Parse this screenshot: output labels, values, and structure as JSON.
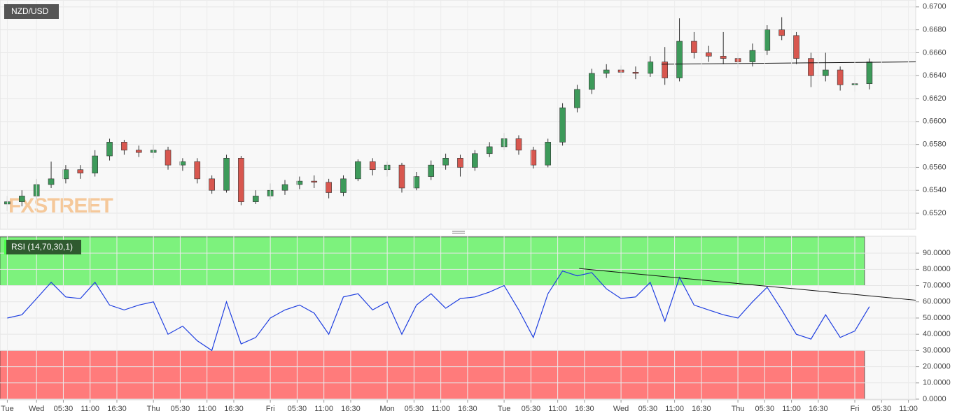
{
  "chart_data": [
    {
      "type": "candlestick",
      "title": "NZD/USD",
      "watermark": "FXSTREET",
      "x": [
        18,
        21,
        24,
        27,
        30,
        33,
        36,
        39,
        42,
        45,
        48,
        51,
        54,
        57,
        60,
        63,
        66,
        69,
        72,
        75,
        78,
        81,
        84,
        87,
        90,
        93,
        96,
        99,
        102,
        105,
        108,
        111,
        114,
        117,
        120,
        123,
        126,
        129,
        132,
        135,
        138,
        141,
        144,
        147,
        150,
        153,
        156,
        159,
        162,
        165,
        168,
        171,
        174,
        177,
        180,
        183,
        186,
        189,
        192,
        195
      ],
      "open": [
        0.6528,
        0.653,
        0.6535,
        0.6545,
        0.655,
        0.6558,
        0.6555,
        0.657,
        0.6582,
        0.6575,
        0.6573,
        0.6575,
        0.6562,
        0.6565,
        0.655,
        0.654,
        0.6568,
        0.653,
        0.6535,
        0.654,
        0.6545,
        0.6548,
        0.6547,
        0.6538,
        0.655,
        0.6565,
        0.6558,
        0.6562,
        0.6542,
        0.6552,
        0.6562,
        0.6568,
        0.656,
        0.6572,
        0.6578,
        0.6585,
        0.6575,
        0.6562,
        0.6582,
        0.6612,
        0.6628,
        0.6642,
        0.6645,
        0.6643,
        0.6642,
        0.6652,
        0.6638,
        0.667,
        0.666,
        0.6657,
        0.6655,
        0.6652,
        0.6662,
        0.668,
        0.6675,
        0.6655,
        0.664,
        0.6645,
        0.6632,
        0.6633
      ],
      "high": [
        0.6535,
        0.654,
        0.655,
        0.6565,
        0.6562,
        0.6562,
        0.6575,
        0.6585,
        0.6584,
        0.6579,
        0.658,
        0.6578,
        0.6568,
        0.6568,
        0.6553,
        0.6571,
        0.657,
        0.654,
        0.6546,
        0.6549,
        0.6552,
        0.6553,
        0.655,
        0.6553,
        0.6567,
        0.6568,
        0.6565,
        0.6564,
        0.6556,
        0.6566,
        0.6572,
        0.6571,
        0.6575,
        0.6582,
        0.659,
        0.6588,
        0.6578,
        0.6585,
        0.6616,
        0.6632,
        0.6646,
        0.665,
        0.6649,
        0.6648,
        0.6657,
        0.6665,
        0.669,
        0.6678,
        0.6666,
        0.6678,
        0.666,
        0.6668,
        0.6684,
        0.6691,
        0.6678,
        0.666,
        0.666,
        0.6648,
        0.664,
        0.6655
      ],
      "low": [
        0.6522,
        0.6526,
        0.6532,
        0.6542,
        0.6546,
        0.655,
        0.6552,
        0.6566,
        0.6571,
        0.6569,
        0.6568,
        0.6558,
        0.6557,
        0.6546,
        0.6537,
        0.6538,
        0.6527,
        0.6528,
        0.6532,
        0.6536,
        0.6541,
        0.6542,
        0.6533,
        0.6535,
        0.6548,
        0.6553,
        0.6552,
        0.6538,
        0.654,
        0.6549,
        0.6558,
        0.6552,
        0.6557,
        0.6569,
        0.6575,
        0.6571,
        0.6559,
        0.656,
        0.6579,
        0.6608,
        0.6624,
        0.6638,
        0.6638,
        0.6637,
        0.6639,
        0.6632,
        0.6635,
        0.6655,
        0.6652,
        0.665,
        0.6647,
        0.6648,
        0.6658,
        0.6671,
        0.665,
        0.663,
        0.6635,
        0.6627,
        0.6626,
        0.6628
      ],
      "close": [
        0.653,
        0.6535,
        0.6545,
        0.655,
        0.6558,
        0.6555,
        0.657,
        0.6582,
        0.6575,
        0.6573,
        0.6575,
        0.6562,
        0.6565,
        0.655,
        0.654,
        0.6568,
        0.653,
        0.6535,
        0.654,
        0.6545,
        0.6548,
        0.6547,
        0.6538,
        0.655,
        0.6565,
        0.6558,
        0.6562,
        0.6542,
        0.6552,
        0.6562,
        0.6568,
        0.656,
        0.6572,
        0.6578,
        0.6585,
        0.6575,
        0.6562,
        0.6582,
        0.6612,
        0.6628,
        0.6642,
        0.6645,
        0.6643,
        0.6642,
        0.6652,
        0.6638,
        0.667,
        0.666,
        0.6657,
        0.6655,
        0.6652,
        0.6662,
        0.668,
        0.6675,
        0.6655,
        0.664,
        0.6645,
        0.6632,
        0.6633,
        0.6652
      ],
      "up_color": "#3d9a5a",
      "down_color": "#d8574f",
      "xlim": [
        16.5,
        204.5
      ],
      "ylim": [
        0.6506,
        0.6706
      ],
      "yticks": [
        {
          "value": 0.652,
          "label": "0.6520"
        },
        {
          "value": 0.654,
          "label": "0.6540"
        },
        {
          "value": 0.656,
          "label": "0.6560"
        },
        {
          "value": 0.658,
          "label": "0.6580"
        },
        {
          "value": 0.66,
          "label": "0.6600"
        },
        {
          "value": 0.662,
          "label": "0.6620"
        },
        {
          "value": 0.664,
          "label": "0.6640"
        },
        {
          "value": 0.666,
          "label": "0.6660"
        },
        {
          "value": 0.668,
          "label": "0.6680"
        },
        {
          "value": 0.67,
          "label": "0.6700"
        }
      ],
      "grid": true,
      "trendlines": [
        {
          "x": [
            152.3,
            204.5
          ],
          "y": [
            0.665,
            0.6652
          ]
        }
      ]
    },
    {
      "type": "line",
      "title": "RSI (14,70,30,1)",
      "series": [
        {
          "color": "#1f3fe0",
          "x": [
            18,
            21,
            24,
            27,
            30,
            33,
            36,
            39,
            42,
            45,
            48,
            51,
            54,
            57,
            60,
            63,
            66,
            69,
            72,
            75,
            78,
            81,
            84,
            87,
            90,
            93,
            96,
            99,
            102,
            105,
            108,
            111,
            114,
            117,
            120,
            123,
            126,
            129,
            132,
            135,
            138,
            141,
            144,
            147,
            150,
            153,
            156,
            159,
            162,
            165,
            168,
            171,
            174,
            177,
            180,
            183,
            186,
            189,
            192,
            195
          ],
          "values": [
            50,
            52,
            62,
            72,
            63,
            62,
            72,
            58,
            55,
            58,
            60,
            40,
            45,
            36,
            30,
            60,
            34,
            38,
            50,
            55,
            58,
            53,
            40,
            63,
            65,
            55,
            60,
            40,
            58,
            65,
            56,
            62,
            63,
            66,
            70,
            55,
            38,
            65,
            79,
            76,
            78,
            68,
            62,
            63,
            72,
            48,
            75,
            58,
            55,
            52,
            50,
            60,
            69,
            55,
            40,
            37,
            52,
            38,
            42,
            57
          ]
        }
      ],
      "bands": [
        {
          "from": 70,
          "to": 100,
          "x_end": 194,
          "color": "#7df27d"
        },
        {
          "from": 0,
          "to": 30,
          "x_end": 194,
          "color": "#ff7b7b"
        }
      ],
      "xlim": [
        16.5,
        204.5
      ],
      "ylim": [
        0,
        100.4
      ],
      "yticks": [
        {
          "value": 0,
          "label": "0.0000"
        },
        {
          "value": 10,
          "label": "10.0000"
        },
        {
          "value": 20,
          "label": "20.0000"
        },
        {
          "value": 30,
          "label": "30.0000"
        },
        {
          "value": 40,
          "label": "40.0000"
        },
        {
          "value": 50,
          "label": "50.0000"
        },
        {
          "value": 60,
          "label": "60.0000"
        },
        {
          "value": 70,
          "label": "70.0000"
        },
        {
          "value": 80,
          "label": "80.0000"
        },
        {
          "value": 90,
          "label": "90.0000"
        }
      ],
      "xticks": [
        {
          "value": 18,
          "label": "Tue"
        },
        {
          "value": 24,
          "label": "Wed"
        },
        {
          "value": 29.5,
          "label": "05:30"
        },
        {
          "value": 35,
          "label": "11:00"
        },
        {
          "value": 40.5,
          "label": "16:30"
        },
        {
          "value": 48,
          "label": "Thu"
        },
        {
          "value": 53.5,
          "label": "05:30"
        },
        {
          "value": 59,
          "label": "11:00"
        },
        {
          "value": 64.5,
          "label": "16:30"
        },
        {
          "value": 72,
          "label": "Fri"
        },
        {
          "value": 77.5,
          "label": "05:30"
        },
        {
          "value": 83,
          "label": "11:00"
        },
        {
          "value": 88.5,
          "label": "16:30"
        },
        {
          "value": 96,
          "label": "Mon"
        },
        {
          "value": 101.5,
          "label": "05:30"
        },
        {
          "value": 107,
          "label": "11:00"
        },
        {
          "value": 112.5,
          "label": "16:30"
        },
        {
          "value": 120,
          "label": "Tue"
        },
        {
          "value": 125.5,
          "label": "05:30"
        },
        {
          "value": 131,
          "label": "11:00"
        },
        {
          "value": 136.5,
          "label": "16:30"
        },
        {
          "value": 144,
          "label": "Wed"
        },
        {
          "value": 149.5,
          "label": "05:30"
        },
        {
          "value": 155,
          "label": "11:00"
        },
        {
          "value": 160.5,
          "label": "16:30"
        },
        {
          "value": 168,
          "label": "Thu"
        },
        {
          "value": 173.5,
          "label": "05:30"
        },
        {
          "value": 179,
          "label": "11:00"
        },
        {
          "value": 184.5,
          "label": "16:30"
        },
        {
          "value": 192,
          "label": "Fri"
        },
        {
          "value": 197.5,
          "label": "05:30"
        },
        {
          "value": 203,
          "label": "11:00"
        }
      ],
      "grid": true,
      "trendlines": [
        {
          "x": [
            135.4,
            204.5
          ],
          "y": [
            80.5,
            61
          ]
        }
      ]
    }
  ]
}
